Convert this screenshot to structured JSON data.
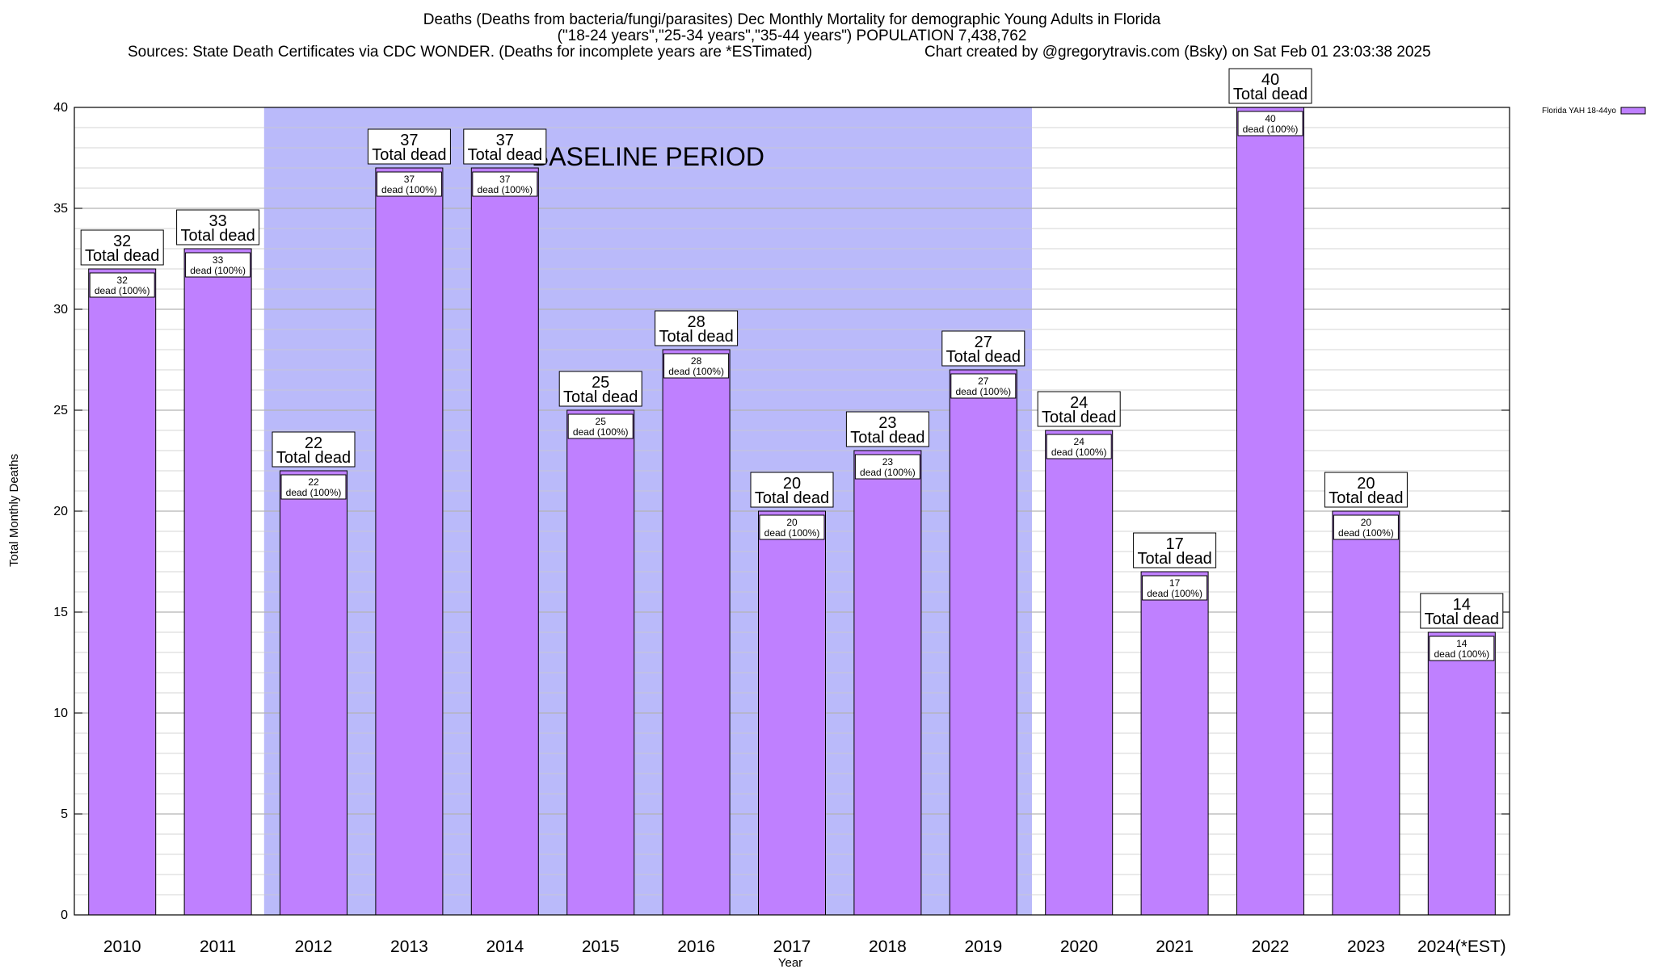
{
  "chart_data": {
    "type": "bar",
    "title": "Deaths (Deaths from bacteria/fungi/parasites) Dec Monthly Mortality for demographic Young Adults in Florida",
    "subtitle": "(\"18-24 years\",\"25-34 years\",\"35-44 years\") POPULATION 7,438,762",
    "source_note": "Sources: State Death Certificates via CDC WONDER. (Deaths for incomplete years are *ESTimated)",
    "credit": "Chart created by @gregorytravis.com (Bsky) on Sat Feb 01 23:03:38 2025",
    "xlabel": "Year",
    "ylabel": "Total Monthly Deaths",
    "ylim": [
      0,
      40
    ],
    "yticks": [
      0,
      5,
      10,
      15,
      20,
      25,
      30,
      35,
      40
    ],
    "grid": true,
    "legend_position": "top-right",
    "categories": [
      "2010",
      "2011",
      "2012",
      "2013",
      "2014",
      "2015",
      "2016",
      "2017",
      "2018",
      "2019",
      "2020",
      "2021",
      "2022",
      "2023",
      "2024(*EST)"
    ],
    "series": [
      {
        "name": "Florida YAH 18-44yo",
        "values": [
          32,
          33,
          22,
          37,
          37,
          25,
          28,
          20,
          23,
          27,
          24,
          17,
          40,
          20,
          14
        ]
      }
    ],
    "bar_label_total_suffix": "Total dead",
    "bar_label_inner_suffix": "dead (100%)",
    "baseline_period": {
      "label": "BASELINE PERIOD",
      "from": "2012",
      "to": "2019"
    },
    "colors": {
      "bar": "#bf80ff",
      "baseline": "#babafa",
      "grid": "#c8c8c8"
    }
  }
}
